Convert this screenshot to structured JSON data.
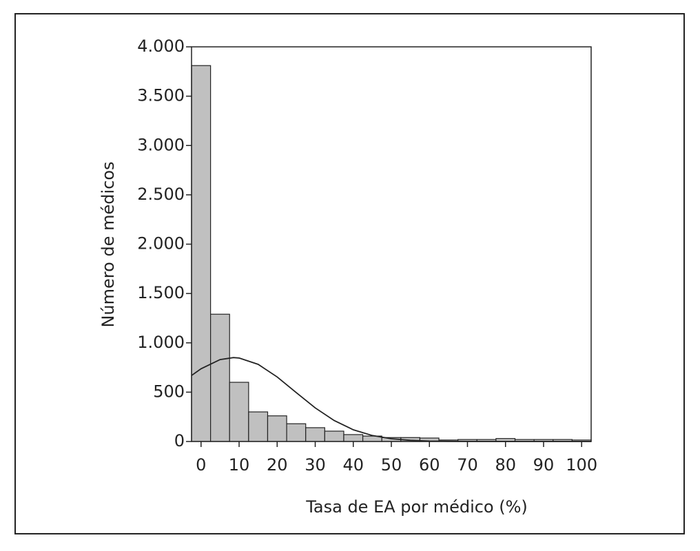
{
  "chart_data": {
    "type": "histogram",
    "xlabel": "Tasa de EA por médico (%)",
    "ylabel": "Número de médicos",
    "bins": [
      -2.5,
      2.5,
      7.5,
      12.5,
      17.5,
      22.5,
      27.5,
      32.5,
      37.5,
      42.5,
      47.5,
      52.5,
      57.5,
      62.5,
      67.5,
      72.5,
      77.5,
      82.5,
      87.5,
      92.5,
      97.5,
      102.5
    ],
    "counts": [
      3810,
      1290,
      600,
      300,
      260,
      180,
      140,
      105,
      70,
      55,
      40,
      40,
      35,
      15,
      20,
      20,
      30,
      20,
      20,
      20,
      15
    ],
    "color": "#c0c0c0",
    "curve": {
      "x": [
        -2.5,
        0,
        5,
        8.5,
        10,
        15,
        20,
        25,
        30,
        35,
        40,
        45,
        50,
        55,
        60,
        65,
        70,
        80,
        90,
        102.5
      ],
      "y": [
        669,
        737,
        830,
        850,
        846,
        782,
        654,
        496,
        341,
        212,
        119,
        61,
        28,
        12,
        4.5,
        2,
        1,
        0,
        0,
        0
      ]
    },
    "xlim": [
      -2.5,
      102.5
    ],
    "ylim": [
      0,
      4000
    ],
    "xticks": [
      0,
      10,
      20,
      30,
      40,
      50,
      60,
      70,
      80,
      90,
      100
    ],
    "yticks": [
      0,
      500,
      {
        "value": 1000,
        "label": "1.000"
      },
      {
        "value": 1500,
        "label": "1.500"
      },
      {
        "value": 2000,
        "label": "2.000"
      },
      {
        "value": 2500,
        "label": "2.500"
      },
      {
        "value": 3000,
        "label": "3.000"
      },
      {
        "value": 3500,
        "label": "3.500"
      },
      {
        "value": 4000,
        "label": "4.000"
      }
    ]
  }
}
